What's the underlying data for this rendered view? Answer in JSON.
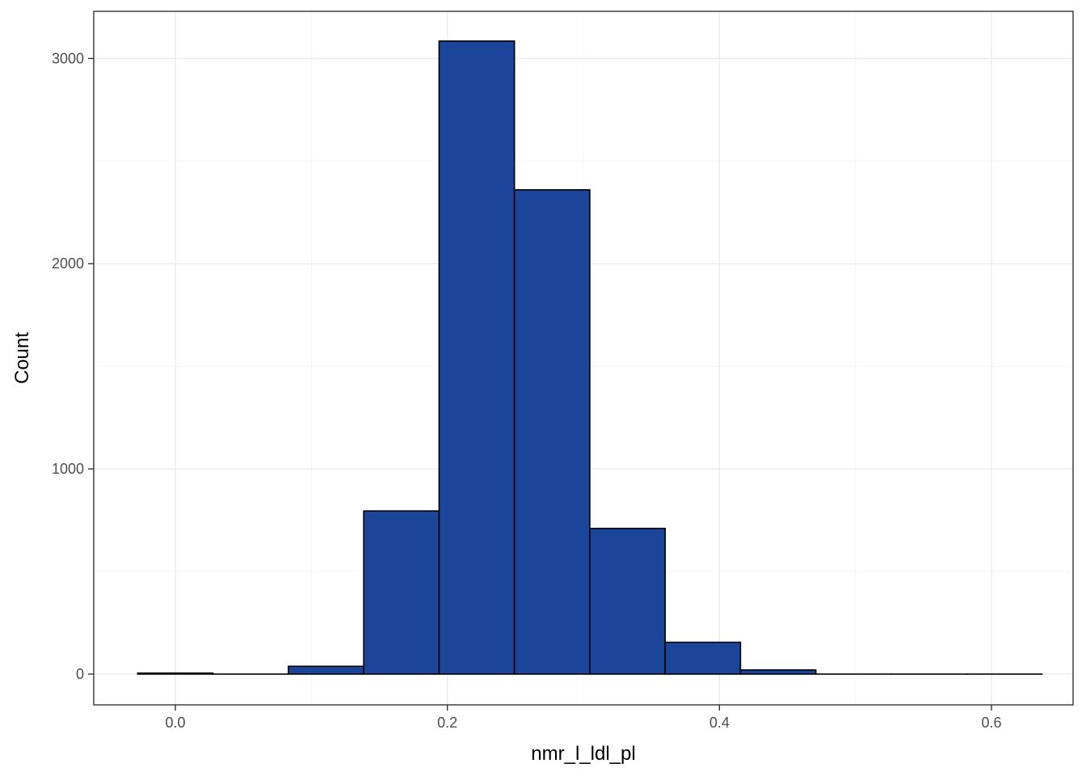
{
  "chart_data": {
    "type": "bar",
    "subtype": "histogram",
    "xlabel": "nmr_l_ldl_pl",
    "ylabel": "Count",
    "xlim": [
      -0.06,
      0.66
    ],
    "ylim": [
      -150,
      3230
    ],
    "x_ticks": [
      0.0,
      0.2,
      0.4,
      0.6
    ],
    "x_tick_labels": [
      "0.0",
      "0.2",
      "0.4",
      "0.6"
    ],
    "y_ticks": [
      0,
      1000,
      2000,
      3000
    ],
    "y_tick_labels": [
      "0",
      "1000",
      "2000",
      "3000"
    ],
    "bin_width": 0.0554,
    "bins": [
      {
        "x0": -0.0277,
        "x1": 0.0277,
        "count": 5
      },
      {
        "x0": 0.0277,
        "x1": 0.0831,
        "count": 0
      },
      {
        "x0": 0.0831,
        "x1": 0.1385,
        "count": 38
      },
      {
        "x0": 0.1385,
        "x1": 0.1939,
        "count": 795
      },
      {
        "x0": 0.1939,
        "x1": 0.2493,
        "count": 3085
      },
      {
        "x0": 0.2493,
        "x1": 0.3047,
        "count": 2360
      },
      {
        "x0": 0.3047,
        "x1": 0.3601,
        "count": 710
      },
      {
        "x0": 0.3601,
        "x1": 0.4155,
        "count": 155
      },
      {
        "x0": 0.4155,
        "x1": 0.4709,
        "count": 20
      },
      {
        "x0": 0.4709,
        "x1": 0.5263,
        "count": 0
      },
      {
        "x0": 0.5263,
        "x1": 0.5817,
        "count": 0
      },
      {
        "x0": 0.5817,
        "x1": 0.6371,
        "count": 0
      }
    ],
    "grid": true,
    "theme": "bw",
    "colors": {
      "fill": "#1a4599",
      "outline": "#000000",
      "grid": "#ebebeb",
      "panel_border": "#333333"
    }
  }
}
